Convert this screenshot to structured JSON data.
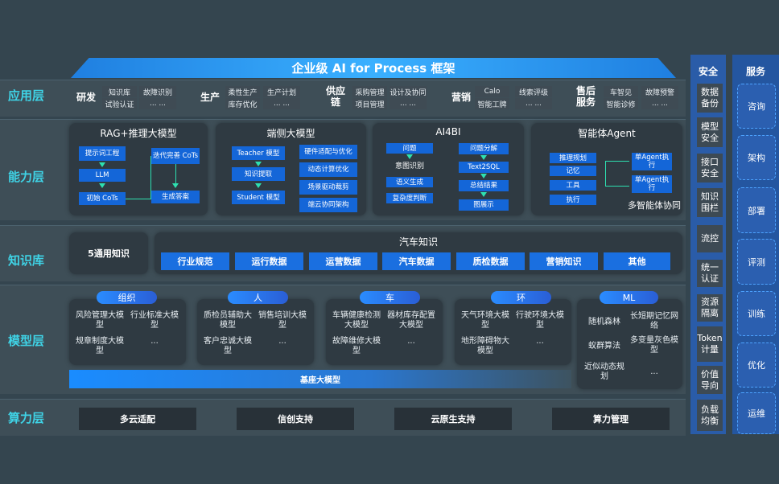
{
  "title": "企业级 AI for Process 框架",
  "layers": {
    "app": "应用层",
    "ability": "能力层",
    "knowledge": "知识库",
    "model": "模型层",
    "compute": "算力层"
  },
  "app_groups": [
    {
      "name": "研发",
      "items": [
        "知识库",
        "故障识别",
        "试验认证",
        "... ..."
      ]
    },
    {
      "name": "生产",
      "items": [
        "柔性生产",
        "生产计划",
        "库存优化",
        "... ..."
      ]
    },
    {
      "name": "供应链",
      "items": [
        "采购管理",
        "设计及协同",
        "项目管理",
        "... ..."
      ]
    },
    {
      "name": "营销",
      "items": [
        "Calo",
        "线索评级",
        "智能工牌",
        "... ..."
      ]
    },
    {
      "name": "售后服务",
      "items": [
        "车智见",
        "故障预警",
        "智能诊修",
        "... ..."
      ]
    }
  ],
  "ability": {
    "rag": {
      "title": "RAG+推理大模型",
      "steps": [
        "提示词工程",
        "LLM",
        "初始 CoTs",
        "迭代完善 CoTs",
        "生成答案"
      ]
    },
    "edge": {
      "title": "端侧大模型",
      "left": [
        "Teacher 模型",
        "知识提取",
        "Student 模型"
      ],
      "right": [
        "硬件适配与优化",
        "动态计算优化",
        "场景驱动裁剪",
        "端云协同架构"
      ]
    },
    "ai4bi": {
      "title": "AI4BI",
      "left": [
        "问题",
        "意图识别",
        "语义生成",
        "复杂度判断"
      ],
      "right": [
        "问题分解",
        "Text2SQL",
        "总结结果",
        "图展示"
      ]
    },
    "agent": {
      "title": "智能体Agent",
      "left": [
        "推理规划",
        "记忆",
        "工具",
        "执行"
      ],
      "right": [
        "单Agent执行",
        "单Agent执行"
      ],
      "note": "多智能体协同"
    }
  },
  "knowledge": {
    "general": "5通用知识",
    "auto_title": "汽车知识",
    "items": [
      "行业规范",
      "运行数据",
      "运营数据",
      "汽车数据",
      "质检数据",
      "营销知识",
      "其他"
    ]
  },
  "model": {
    "groups": [
      {
        "name": "组织",
        "items": [
          "风险管理大模型",
          "行业标准大模型",
          "规章制度大模型",
          "..."
        ]
      },
      {
        "name": "人",
        "items": [
          "质检员辅助大模型",
          "销售培训大模型",
          "客户忠诚大模型",
          "..."
        ]
      },
      {
        "name": "车",
        "items": [
          "车辆健康检测大模型",
          "器材库存配置大模型",
          "故障维修大模型",
          "..."
        ]
      },
      {
        "name": "环",
        "items": [
          "天气环境大模型",
          "行驶环境大模型",
          "地形障碍物大模型",
          "..."
        ]
      }
    ],
    "ml": {
      "name": "ML",
      "items": [
        "随机森林",
        "长短期记忆网络",
        "蚁群算法",
        "多变量灰色模型",
        "近似动态规划",
        "..."
      ]
    },
    "base": "基座大模型"
  },
  "compute": [
    "多云适配",
    "信创支持",
    "云原生支持",
    "算力管理"
  ],
  "security": {
    "title": "安全",
    "items": [
      "数据备份",
      "模型安全",
      "接口安全",
      "知识围栏",
      "流控",
      "统一认证",
      "资源隔离",
      "Token计量",
      "价值导向",
      "负载均衡"
    ]
  },
  "service": {
    "title": "服务",
    "items": [
      "咨询",
      "架构",
      "部署",
      "评测",
      "训练",
      "优化",
      "运维"
    ]
  }
}
